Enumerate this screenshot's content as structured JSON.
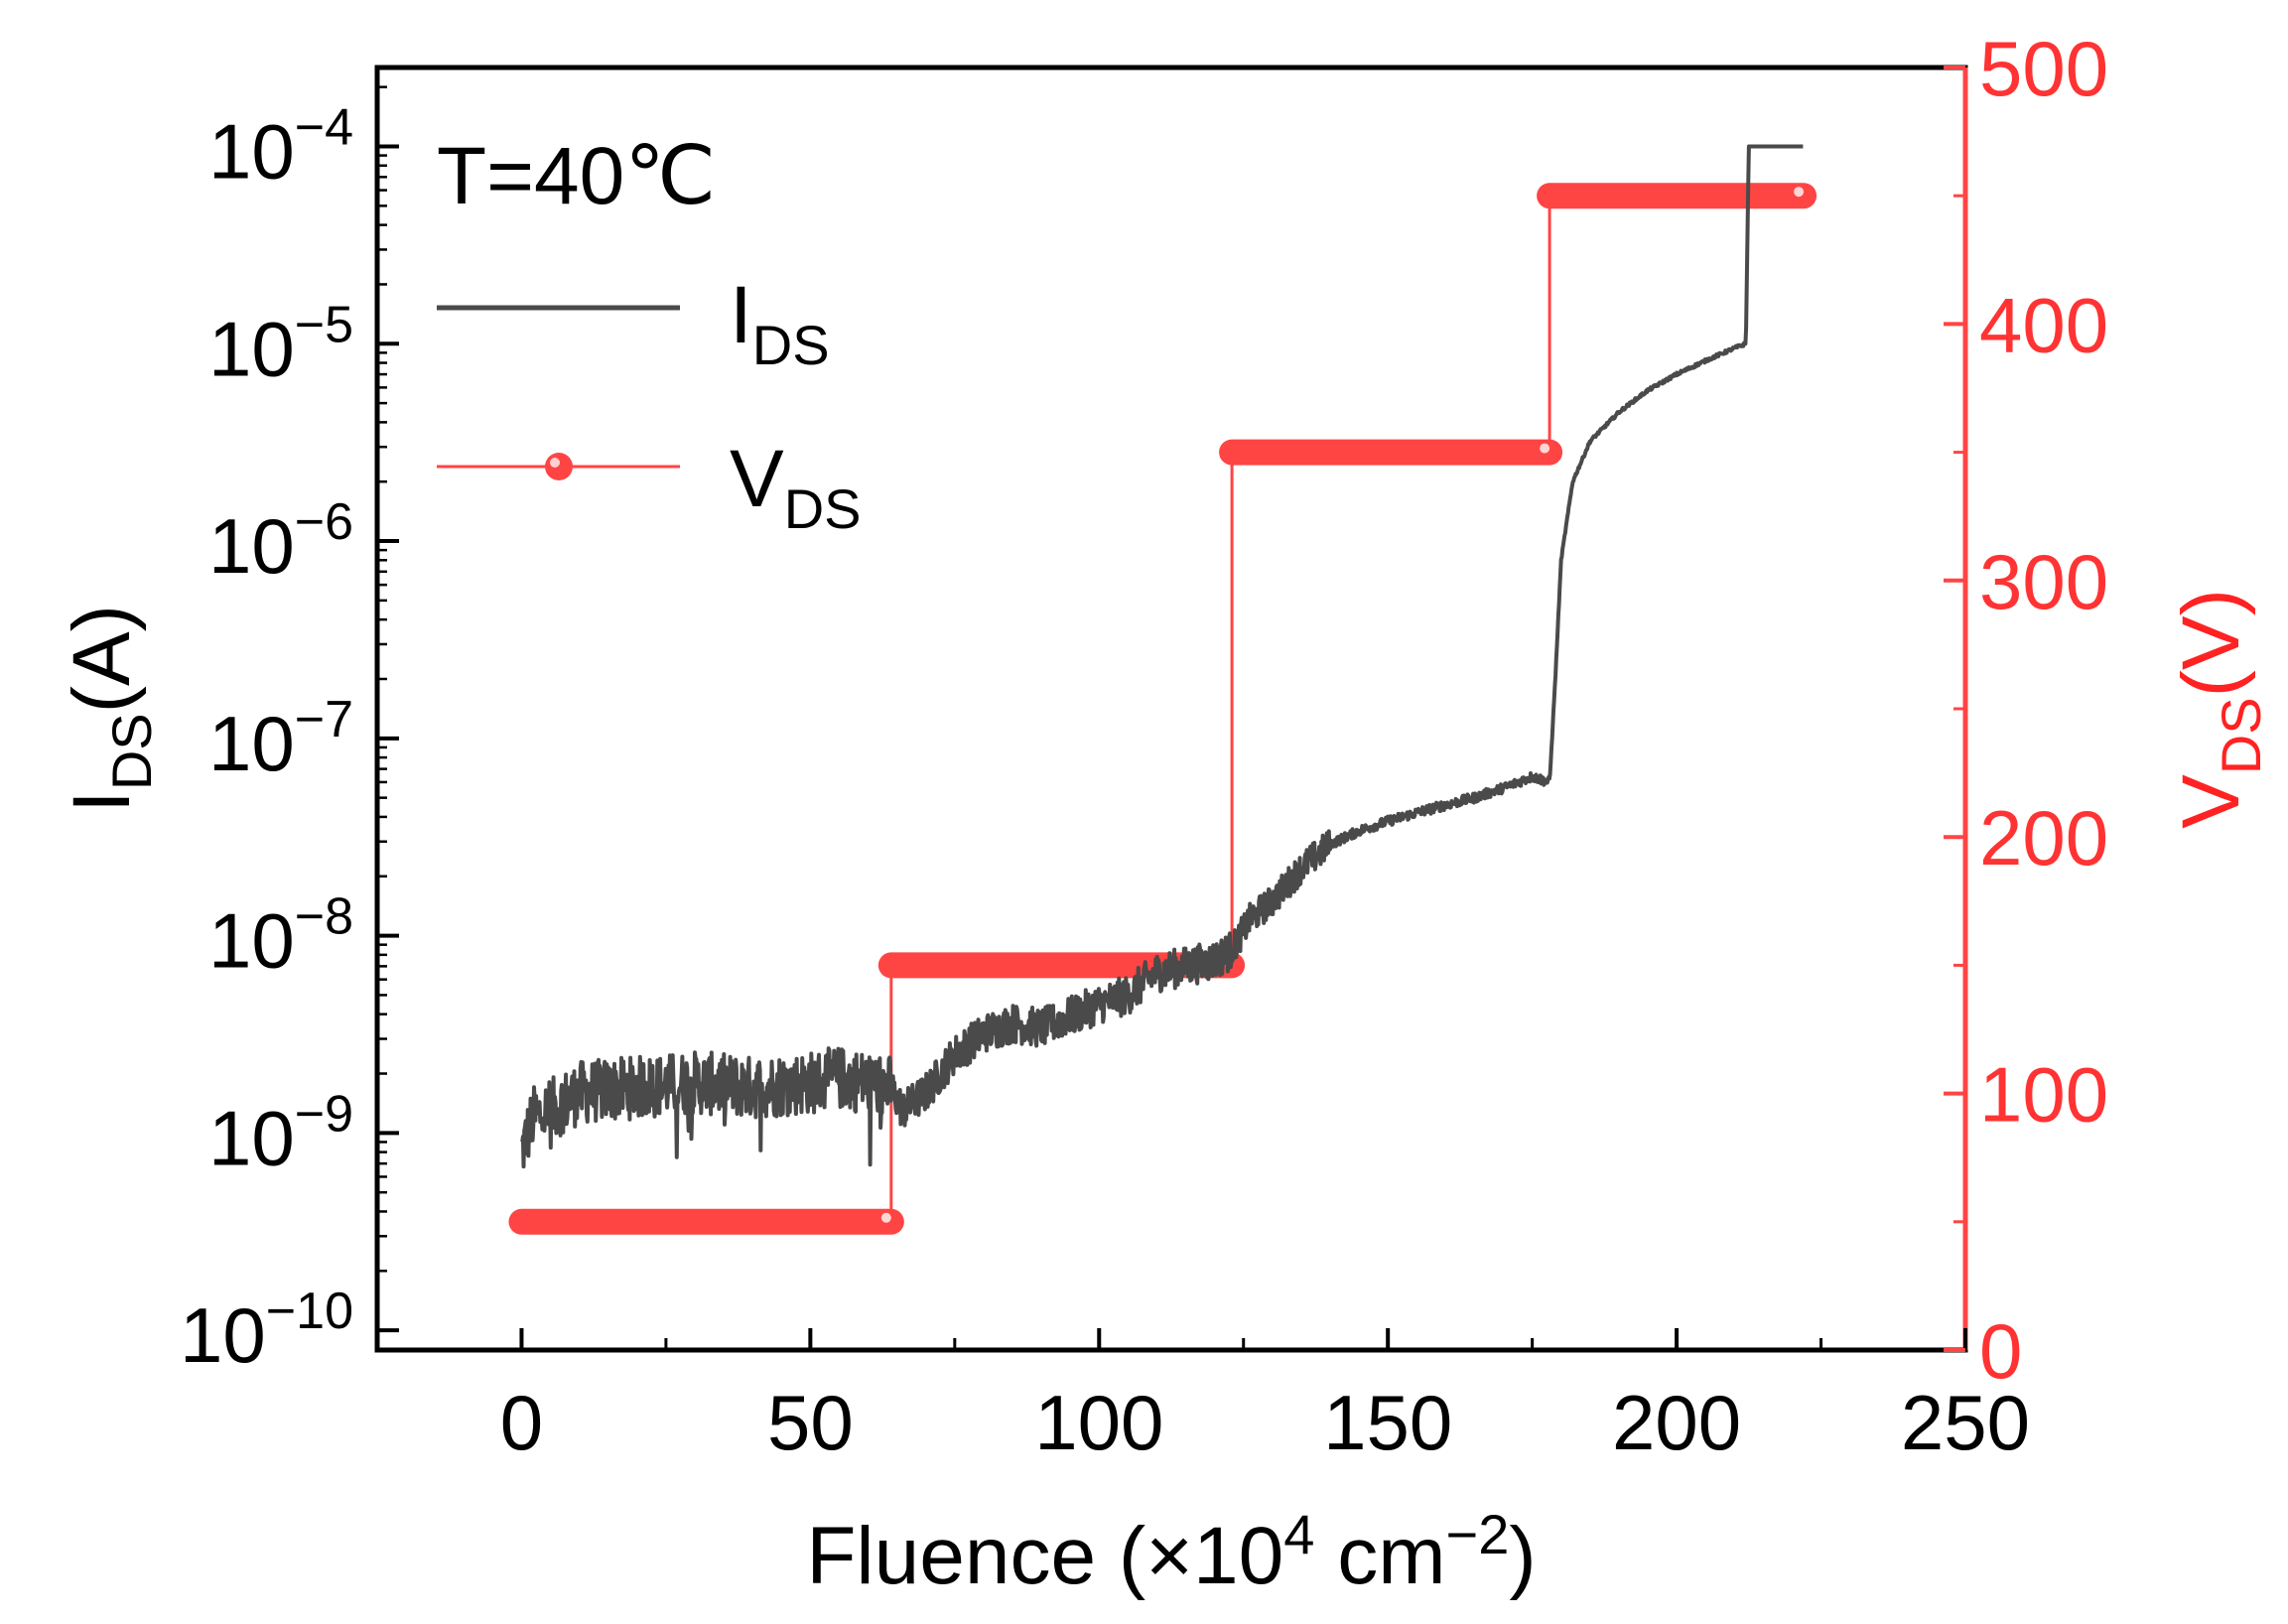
{
  "chart_data": {
    "type": "line",
    "annotation": "T=40℃",
    "xlabel": {
      "main": "Fluence (×10",
      "sup": "4",
      "mid": " cm",
      "sup2": "−2",
      "end": ")"
    },
    "ylabel_left": {
      "main": "I",
      "sub": "DS",
      "end": "(A)"
    },
    "ylabel_right": {
      "main": "V",
      "sub": "DS",
      "end": "(V)"
    },
    "xlim": [
      -25,
      250
    ],
    "xticks": [
      0,
      50,
      100,
      150,
      200,
      250
    ],
    "xtick_labels": [
      "0",
      "50",
      "100",
      "150",
      "200",
      "250"
    ],
    "ylim_left_log10": [
      -10.1,
      -3.6
    ],
    "yticks_left_exp": [
      -10,
      -9,
      -8,
      -7,
      -6,
      -5,
      -4
    ],
    "ytick_left_labels": [
      {
        "base": "10",
        "exp": "−10"
      },
      {
        "base": "10",
        "exp": "−9"
      },
      {
        "base": "10",
        "exp": "−8"
      },
      {
        "base": "10",
        "exp": "−7"
      },
      {
        "base": "10",
        "exp": "−6"
      },
      {
        "base": "10",
        "exp": "−5"
      },
      {
        "base": "10",
        "exp": "−4"
      }
    ],
    "ylim_right": [
      0,
      500
    ],
    "yticks_right": [
      0,
      100,
      200,
      300,
      400,
      500
    ],
    "ytick_right_labels": [
      "0",
      "100",
      "200",
      "300",
      "400",
      "500"
    ],
    "legend": [
      {
        "name": "I",
        "sub": "DS",
        "color": "#4a4a4a"
      },
      {
        "name": "V",
        "sub": "DS",
        "color": "#ff4444"
      }
    ],
    "series": [
      {
        "name": "IDS",
        "axis": "left",
        "scale": "log",
        "color": "#4a4a4a",
        "x": [
          0,
          2,
          5,
          10,
          20,
          30,
          40,
          50,
          55,
          60,
          64,
          66,
          70,
          75,
          80,
          85,
          90,
          95,
          100,
          105,
          110,
          115,
          120,
          123,
          124,
          126,
          130,
          135,
          140,
          145,
          150,
          155,
          160,
          165,
          170,
          175,
          178,
          179,
          180,
          182,
          185,
          190,
          195,
          200,
          205,
          210,
          212,
          212.5,
          215,
          222
        ],
        "y": [
          8e-10,
          1.2e-09,
          1.3e-09,
          1.6e-09,
          1.7e-09,
          1.8e-09,
          1.7e-09,
          1.8e-09,
          1.9e-09,
          1.8e-09,
          1.7e-09,
          1.3e-09,
          1.6e-09,
          2.5e-09,
          3.2e-09,
          3.6e-09,
          3.4e-09,
          3.9e-09,
          4.5e-09,
          5e-09,
          6.5e-09,
          7e-09,
          7.5e-09,
          8.5e-09,
          9.5e-09,
          1.2e-08,
          1.5e-08,
          2.2e-08,
          2.9e-08,
          3.4e-08,
          3.8e-08,
          4.2e-08,
          4.6e-08,
          5e-08,
          5.6e-08,
          6.4e-08,
          6e-08,
          2e-07,
          8e-07,
          2e-06,
          3.2e-06,
          4.5e-06,
          5.8e-06,
          7e-06,
          8.2e-06,
          9.5e-06,
          1e-05,
          0.0001,
          0.0001,
          0.0001
        ],
        "noise_note": "fluctuating trace"
      },
      {
        "name": "VDS",
        "axis": "right",
        "color": "#ff4444",
        "steps": [
          {
            "x0": 0,
            "x1": 64,
            "v": 50
          },
          {
            "x0": 64,
            "x1": 123,
            "v": 150
          },
          {
            "x0": 123,
            "x1": 178,
            "v": 350
          },
          {
            "x0": 178,
            "x1": 222,
            "v": 450
          }
        ]
      }
    ]
  }
}
